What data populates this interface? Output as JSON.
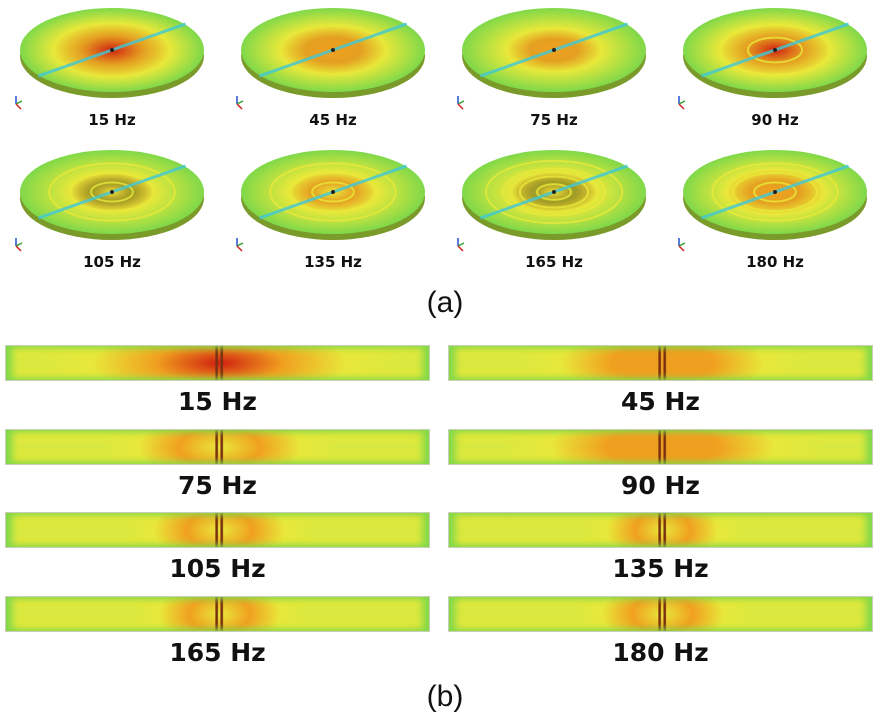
{
  "panel_a": {
    "caption": "(a)",
    "disks": [
      {
        "label": "15 Hz",
        "hot": 0.95,
        "rings": 0
      },
      {
        "label": "45 Hz",
        "hot": 0.75,
        "rings": 0
      },
      {
        "label": "75 Hz",
        "hot": 0.55,
        "rings": 0
      },
      {
        "label": "90 Hz",
        "hot": 0.85,
        "rings": 2
      },
      {
        "label": "105 Hz",
        "hot": 0.35,
        "rings": 3
      },
      {
        "label": "135 Hz",
        "hot": 0.45,
        "rings": 3
      },
      {
        "label": "165 Hz",
        "hot": 0.4,
        "rings": 4
      },
      {
        "label": "180 Hz",
        "hot": 0.6,
        "rings": 3
      }
    ]
  },
  "panel_b": {
    "caption": "(b)",
    "strips": [
      {
        "label": "15 Hz",
        "hot": 0.95
      },
      {
        "label": "45 Hz",
        "hot": 0.7
      },
      {
        "label": "75 Hz",
        "hot": 0.5
      },
      {
        "label": "90 Hz",
        "hot": 0.8
      },
      {
        "label": "105 Hz",
        "hot": 0.35
      },
      {
        "label": "135 Hz",
        "hot": 0.25
      },
      {
        "label": "165 Hz",
        "hot": 0.3
      },
      {
        "label": "180 Hz",
        "hot": 0.3
      }
    ]
  },
  "colors": {
    "green": "#7fd84a",
    "yellow": "#e8e83a",
    "orange": "#f0a020",
    "red": "#d02010",
    "cyan": "#40c8d8",
    "rim": "#7a9a2a"
  }
}
